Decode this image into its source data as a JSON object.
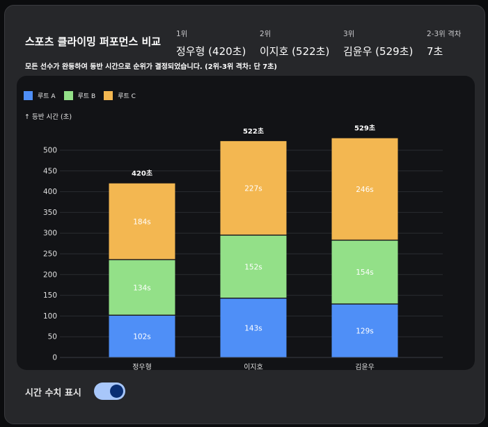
{
  "header": {
    "title": "스포츠 클라이밍 퍼포먼스 비교",
    "subtitle": "모든 선수가 완등하여 등반 시간으로 순위가 결정되었습니다. (2위-3위 격차: 단 7초)",
    "ranks": [
      {
        "label": "1위",
        "value": "정우형 (420초)"
      },
      {
        "label": "2위",
        "value": "이지호 (522초)"
      },
      {
        "label": "3위",
        "value": "김윤우 (529초)"
      },
      {
        "label": "2-3위 격차",
        "value": "7초"
      }
    ]
  },
  "toggle": {
    "label": "시간 수치 표시",
    "on": true
  },
  "colors": {
    "route_a": "#4f8ff7",
    "route_b": "#93e088",
    "route_c": "#f3b751",
    "grid": "#2a2c31",
    "axis_text": "#e0e0e0"
  },
  "chart_data": {
    "type": "bar",
    "stacked": true,
    "title": "",
    "xlabel": "",
    "ylabel": "↑ 등반 시간 (초)",
    "ylim": [
      0,
      525
    ],
    "yticks": [
      0,
      50,
      100,
      150,
      200,
      250,
      300,
      350,
      400,
      450,
      500
    ],
    "categories": [
      "정우형",
      "이지호",
      "김윤우"
    ],
    "series": [
      {
        "name": "루트 A",
        "values": [
          102,
          143,
          129
        ],
        "labels": [
          "102s",
          "143s",
          "129s"
        ]
      },
      {
        "name": "루트 B",
        "values": [
          134,
          152,
          154
        ],
        "labels": [
          "134s",
          "152s",
          "154s"
        ]
      },
      {
        "name": "루트 C",
        "values": [
          184,
          227,
          246
        ],
        "labels": [
          "184s",
          "227s",
          "246s"
        ]
      }
    ],
    "totals": [
      420,
      522,
      529
    ],
    "total_labels": [
      "420초",
      "522초",
      "529초"
    ],
    "legend_position": "top-left"
  }
}
